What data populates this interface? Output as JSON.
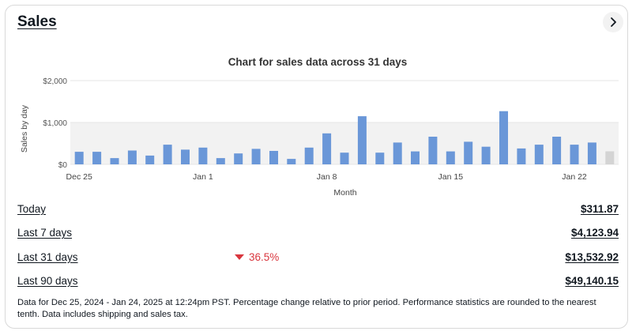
{
  "card": {
    "title": "Sales",
    "next_icon": "chevron-right-icon"
  },
  "chart_data": {
    "type": "bar",
    "title": "Chart for sales data across 31 days",
    "xlabel": "Month",
    "ylabel": "Sales by day",
    "ylim": [
      0,
      2000
    ],
    "y_ticks": [
      "$2,000",
      "$1,000",
      "$0"
    ],
    "x_tick_labels": [
      "Dec 25",
      "Jan 1",
      "Jan 8",
      "Jan 15",
      "Jan 22"
    ],
    "categories": [
      "Dec 25",
      "Dec 26",
      "Dec 27",
      "Dec 28",
      "Dec 29",
      "Dec 30",
      "Dec 31",
      "Jan 1",
      "Jan 2",
      "Jan 3",
      "Jan 4",
      "Jan 5",
      "Jan 6",
      "Jan 7",
      "Jan 8",
      "Jan 9",
      "Jan 10",
      "Jan 11",
      "Jan 12",
      "Jan 13",
      "Jan 14",
      "Jan 15",
      "Jan 16",
      "Jan 17",
      "Jan 18",
      "Jan 19",
      "Jan 20",
      "Jan 21",
      "Jan 22",
      "Jan 23",
      "Jan 24"
    ],
    "values": [
      300,
      300,
      150,
      330,
      210,
      470,
      350,
      400,
      150,
      260,
      370,
      320,
      130,
      400,
      740,
      280,
      1150,
      280,
      520,
      310,
      660,
      310,
      540,
      420,
      1270,
      380,
      470,
      660,
      470,
      520,
      312
    ],
    "highlight_last": true,
    "colors": {
      "bar": "#6a97d8",
      "today_bar": "#d4d4d4",
      "band": "#f2f2f2"
    }
  },
  "stats": [
    {
      "label": "Today",
      "value": "$311.87"
    },
    {
      "label": "Last 7 days",
      "value": "$4,123.94"
    },
    {
      "label": "Last 31 days",
      "value": "$13,532.92",
      "change": "36.5%",
      "change_direction": "down"
    },
    {
      "label": "Last 90 days",
      "value": "$49,140.15"
    }
  ],
  "footnote": "Data for Dec 25, 2024 - Jan 24, 2025 at 12:24pm PST. Percentage change relative to prior period. Performance statistics are rounded to the nearest tenth. Data includes shipping and sales tax."
}
